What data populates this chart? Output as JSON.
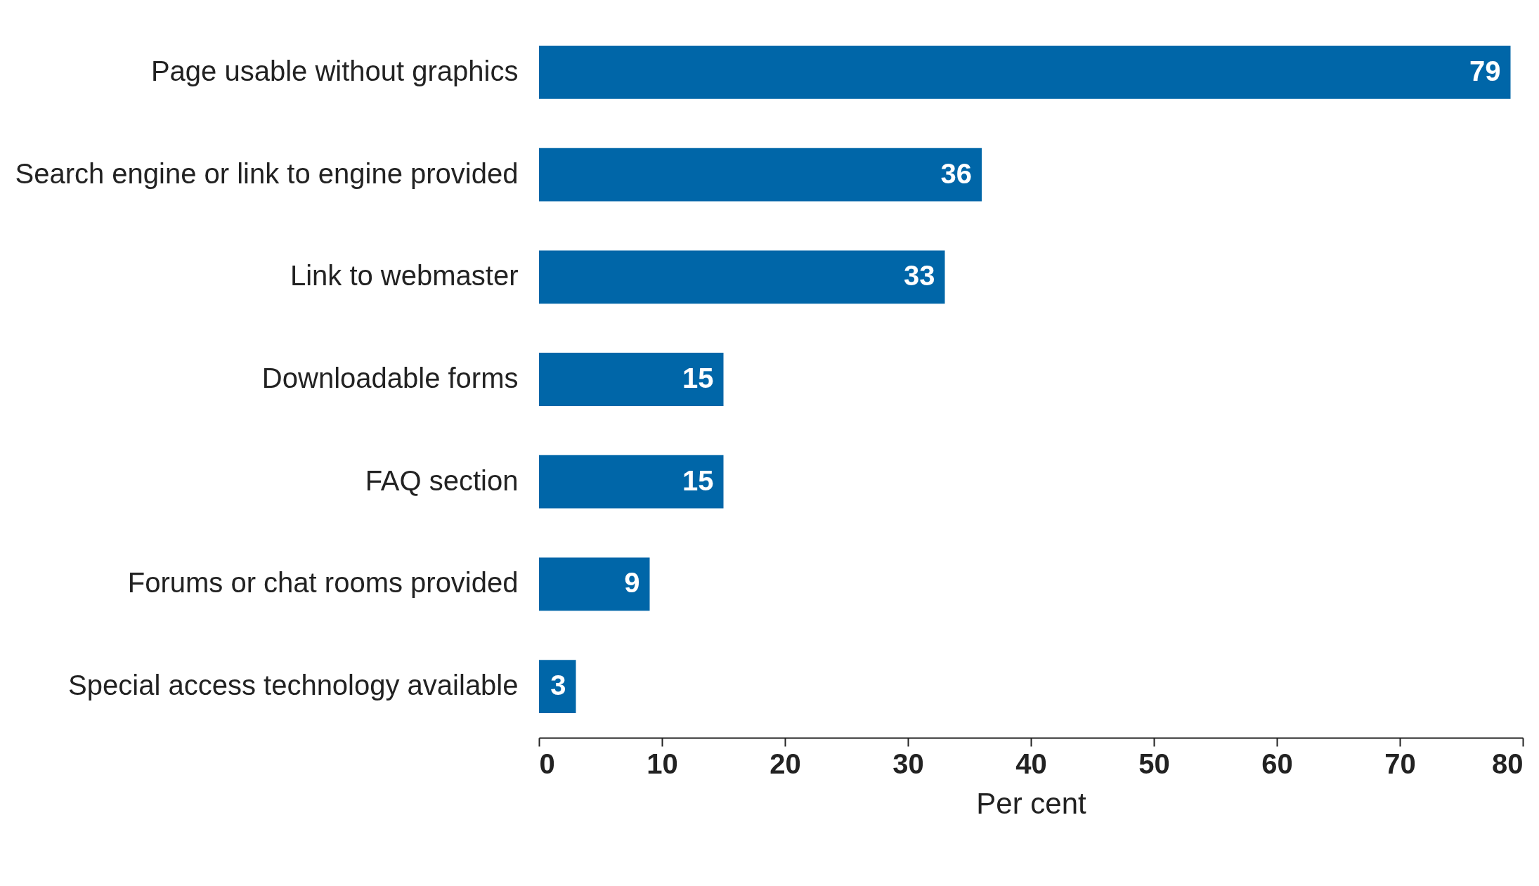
{
  "chart_data": {
    "type": "bar",
    "orientation": "horizontal",
    "xlabel": "Per cent",
    "categories": [
      "Page usable without graphics",
      "Search engine or link to engine provided",
      "Link to webmaster",
      "Downloadable forms",
      "FAQ section",
      "Forums or chat rooms provided",
      "Special access technology available"
    ],
    "values": [
      79,
      36,
      33,
      15,
      15,
      9,
      3
    ],
    "color": "#0066a8",
    "xlim": [
      0,
      80
    ],
    "xticks": [
      0,
      10,
      20,
      30,
      40,
      50,
      60,
      70,
      80
    ],
    "data_labels": true
  }
}
